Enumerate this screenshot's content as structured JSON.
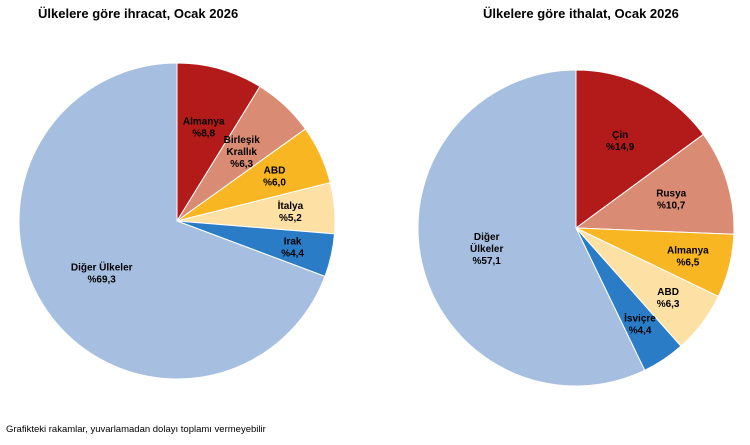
{
  "chart_data": [
    {
      "type": "pie",
      "title": "Ülkelere göre ihracat, Ocak 2026",
      "slices": [
        {
          "name": "Almanya",
          "label_lines": [
            "Almanya"
          ],
          "display": "%8,8",
          "value": 8.8,
          "color": "#b31b1b"
        },
        {
          "name": "Birleşik Krallık",
          "label_lines": [
            "Birleşik",
            "Krallık"
          ],
          "display": "%6,3",
          "value": 6.3,
          "color": "#d98b73"
        },
        {
          "name": "ABD",
          "label_lines": [
            "ABD"
          ],
          "display": "%6,0",
          "value": 6.0,
          "color": "#f7b622"
        },
        {
          "name": "İtalya",
          "label_lines": [
            "İtalya"
          ],
          "display": "%5,2",
          "value": 5.2,
          "color": "#fde0a4"
        },
        {
          "name": "Irak",
          "label_lines": [
            "Irak"
          ],
          "display": "%4,4",
          "value": 4.4,
          "color": "#2a7cc6"
        },
        {
          "name": "Diğer Ülkeler",
          "label_lines": [
            "Diğer Ülkeler"
          ],
          "display": "%69,3",
          "value": 69.3,
          "color": "#a6bfe1"
        }
      ]
    },
    {
      "type": "pie",
      "title": "Ülkelere göre ithalat, Ocak 2026",
      "slices": [
        {
          "name": "Çin",
          "label_lines": [
            "Çin"
          ],
          "display": "%14,9",
          "value": 14.9,
          "color": "#b31b1b"
        },
        {
          "name": "Rusya",
          "label_lines": [
            "Rusya"
          ],
          "display": "%10,7",
          "value": 10.7,
          "color": "#d98b73"
        },
        {
          "name": "Almanya",
          "label_lines": [
            "Almanya"
          ],
          "display": "%6,5",
          "value": 6.5,
          "color": "#f7b622"
        },
        {
          "name": "ABD",
          "label_lines": [
            "ABD"
          ],
          "display": "%6,3",
          "value": 6.3,
          "color": "#fde0a4"
        },
        {
          "name": "İsviçre",
          "label_lines": [
            "İsviçre"
          ],
          "display": "%4,4",
          "value": 4.4,
          "color": "#2a7cc6"
        },
        {
          "name": "Diğer Ülkeler",
          "label_lines": [
            "Diğer",
            "Ülkeler"
          ],
          "display": "%57,1",
          "value": 57.1,
          "color": "#a6bfe1"
        }
      ]
    }
  ],
  "footnote": "Grafikteki rakamlar, yuvarlamadan dolayı toplamı vermeyebilir"
}
